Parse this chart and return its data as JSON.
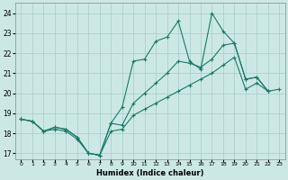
{
  "xlabel": "Humidex (Indice chaleur)",
  "xlim": [
    -0.5,
    23.5
  ],
  "ylim": [
    16.7,
    24.5
  ],
  "yticks": [
    17,
    18,
    19,
    20,
    21,
    22,
    23,
    24
  ],
  "xticks": [
    0,
    1,
    2,
    3,
    4,
    5,
    6,
    7,
    8,
    9,
    10,
    11,
    12,
    13,
    14,
    15,
    16,
    17,
    18,
    19,
    20,
    21,
    22,
    23
  ],
  "bg_color": "#cce8e5",
  "grid_color": "#aacfcb",
  "line_color": "#1a7a65",
  "lines": [
    {
      "x": [
        0,
        1,
        2,
        3,
        4,
        5,
        6,
        7,
        8,
        9,
        10,
        11,
        12,
        13,
        14,
        15,
        16,
        17,
        18,
        19,
        20,
        21,
        22
      ],
      "y": [
        18.7,
        18.6,
        18.1,
        18.3,
        18.2,
        17.8,
        17.0,
        16.9,
        18.5,
        19.3,
        21.6,
        21.7,
        22.6,
        22.8,
        23.6,
        21.6,
        21.2,
        24.0,
        23.1,
        22.5,
        20.7,
        20.8,
        20.1
      ]
    },
    {
      "x": [
        0,
        1,
        2,
        3,
        4,
        5,
        6,
        7,
        8,
        9,
        10,
        11,
        12,
        13,
        14,
        15,
        16,
        17,
        18,
        19,
        20,
        21,
        22
      ],
      "y": [
        18.7,
        18.6,
        18.1,
        18.3,
        18.2,
        17.8,
        17.0,
        16.9,
        18.5,
        18.4,
        19.5,
        20.0,
        20.5,
        21.0,
        21.6,
        21.5,
        21.3,
        21.7,
        22.4,
        22.5,
        20.7,
        20.8,
        20.1
      ]
    },
    {
      "x": [
        0,
        1,
        2,
        3,
        4,
        5,
        6,
        7,
        8,
        9,
        10,
        11,
        12,
        13,
        14,
        15,
        16,
        17,
        18,
        19,
        20,
        21,
        22,
        23
      ],
      "y": [
        18.7,
        18.6,
        18.1,
        18.2,
        18.1,
        17.7,
        17.0,
        16.9,
        18.1,
        18.2,
        18.9,
        19.2,
        19.5,
        19.8,
        20.1,
        20.4,
        20.7,
        21.0,
        21.4,
        21.8,
        20.2,
        20.5,
        20.1,
        20.2
      ]
    }
  ]
}
